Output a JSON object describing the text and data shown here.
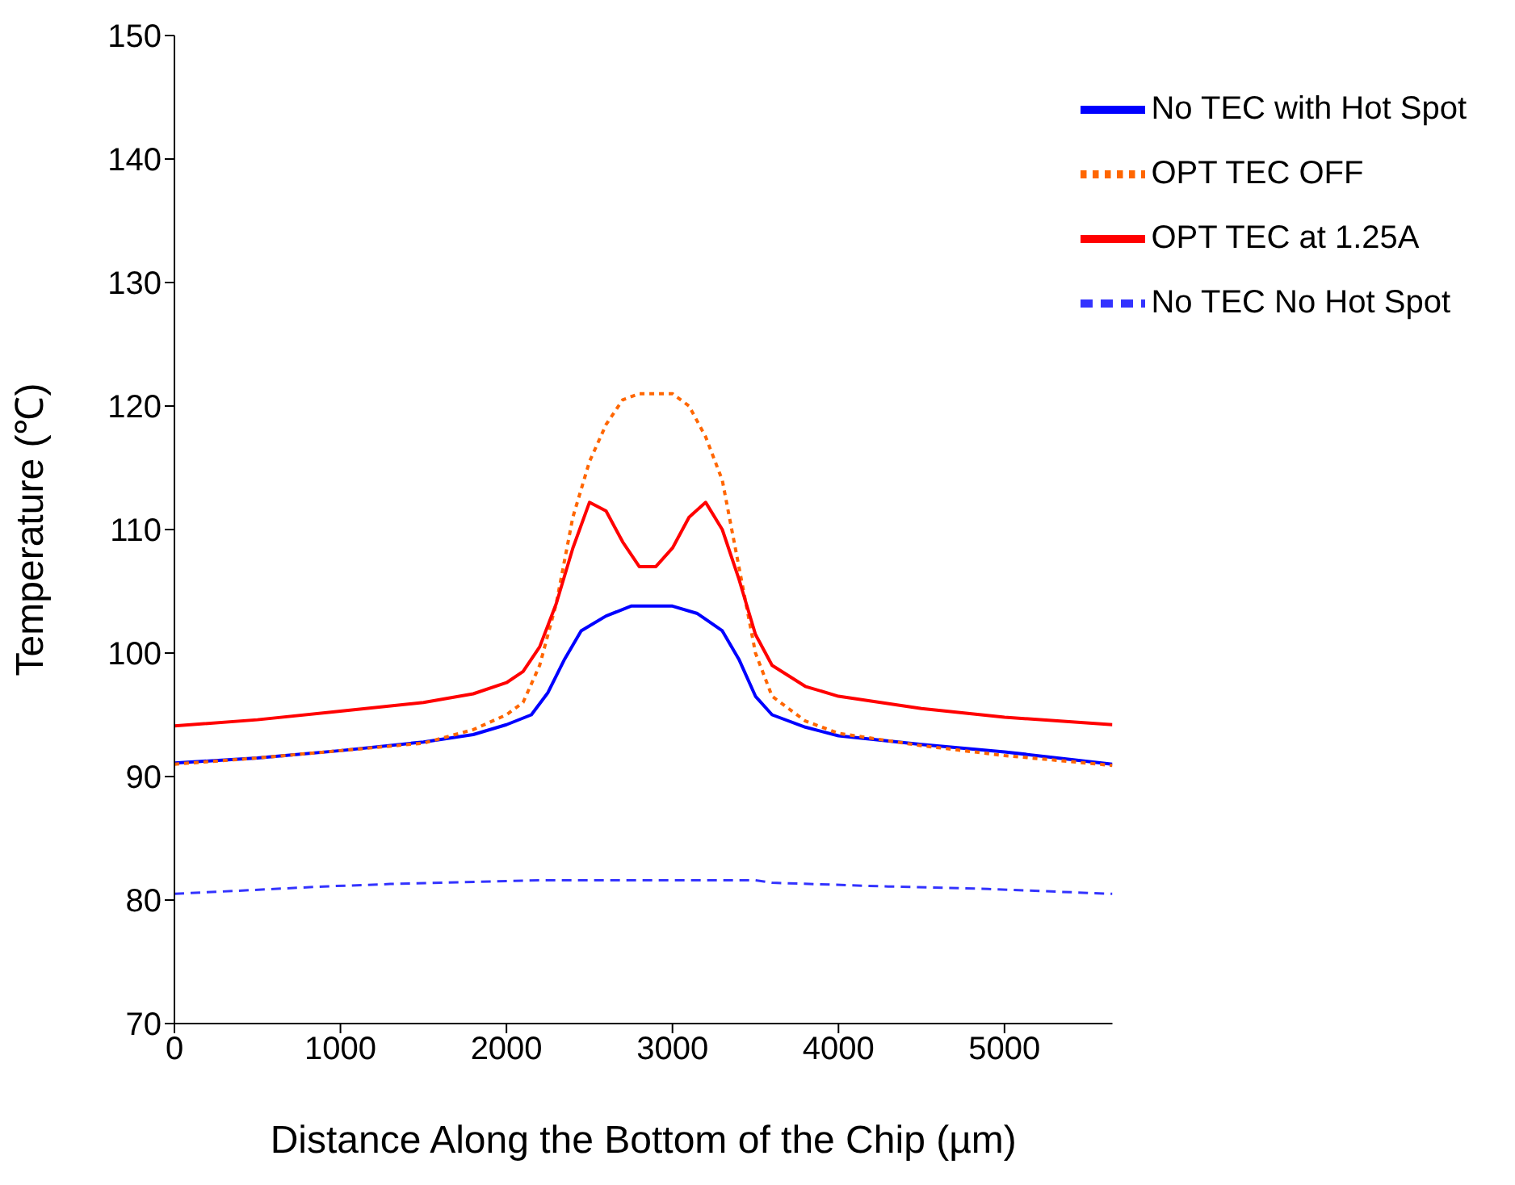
{
  "chart_data": {
    "type": "line",
    "xlabel": "Distance Along the Bottom of the Chip (µm)",
    "ylabel": "Temperature (℃)",
    "xlim": [
      0,
      5650
    ],
    "xticks": [
      0,
      1000,
      2000,
      3000,
      4000,
      5000
    ],
    "ylim": [
      70,
      150
    ],
    "yticks": [
      70,
      80,
      90,
      100,
      110,
      120,
      130,
      140,
      150
    ],
    "grid": false,
    "legend": "top right",
    "marker": "none",
    "series": [
      {
        "name": "No TEC with Hot Spot",
        "color": "#0000ff",
        "line_style": "solid",
        "x": [
          0,
          500,
          1000,
          1500,
          1800,
          2000,
          2150,
          2250,
          2350,
          2450,
          2600,
          2750,
          3000,
          3150,
          3300,
          3400,
          3500,
          3600,
          3800,
          4000,
          4500,
          5000,
          5650
        ],
        "values": [
          91.1,
          91.5,
          92.1,
          92.8,
          93.4,
          94.2,
          95,
          96.8,
          99.5,
          101.8,
          103,
          103.8,
          103.8,
          103.2,
          101.8,
          99.5,
          96.5,
          95,
          94,
          93.3,
          92.6,
          92,
          91
        ]
      },
      {
        "name": "OPT TEC OFF",
        "color": "#ff6600",
        "line_style": "dotted",
        "x": [
          0,
          500,
          1000,
          1500,
          1800,
          2000,
          2100,
          2200,
          2300,
          2400,
          2500,
          2600,
          2700,
          2800,
          3000,
          3100,
          3200,
          3300,
          3400,
          3500,
          3600,
          3800,
          4000,
          4500,
          5000,
          5650
        ],
        "values": [
          91,
          91.5,
          92.1,
          92.7,
          93.8,
          95,
          96,
          99,
          104,
          111,
          115.5,
          118.5,
          120.5,
          121,
          121,
          120,
          117.5,
          114,
          107,
          100,
          96.5,
          94.5,
          93.5,
          92.5,
          91.7,
          90.9
        ]
      },
      {
        "name": "OPT TEC at 1.25A",
        "color": "#ff0000",
        "line_style": "solid",
        "x": [
          0,
          500,
          1000,
          1500,
          1800,
          2000,
          2100,
          2200,
          2300,
          2400,
          2500,
          2600,
          2700,
          2800,
          2900,
          3000,
          3100,
          3200,
          3300,
          3400,
          3500,
          3600,
          3800,
          4000,
          4500,
          5000,
          5650
        ],
        "values": [
          94.1,
          94.6,
          95.3,
          96,
          96.7,
          97.6,
          98.5,
          100.5,
          104,
          108.5,
          112.2,
          111.5,
          109,
          107,
          107,
          108.5,
          111,
          112.2,
          110,
          106,
          101.5,
          99,
          97.3,
          96.5,
          95.5,
          94.8,
          94.2
        ]
      },
      {
        "name": "No TEC No Hot Spot",
        "color": "#3333ff",
        "line_style": "dashed",
        "x": [
          0,
          600,
          900,
          1300,
          2200,
          3500,
          3600,
          4300,
          4900,
          5650
        ],
        "values": [
          80.5,
          80.9,
          81.1,
          81.3,
          81.6,
          81.6,
          81.4,
          81.1,
          80.9,
          80.5
        ]
      }
    ]
  }
}
